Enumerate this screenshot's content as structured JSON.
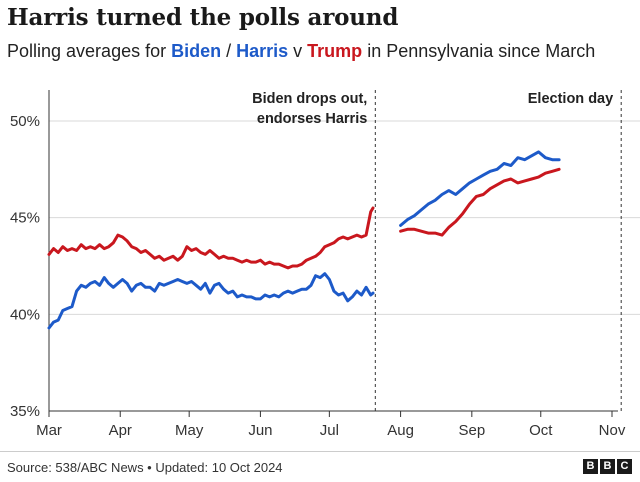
{
  "header": {
    "title": "Harris turned the polls around",
    "subtitle_prefix": "Polling averages for ",
    "subtitle_biden": "Biden",
    "subtitle_sep": " / ",
    "subtitle_harris": "Harris",
    "subtitle_v": " v ",
    "subtitle_trump": "Trump",
    "subtitle_suffix": " in Pennsylvania since March"
  },
  "footer": {
    "source": "Source: 538/ABC News • Updated: 10 Oct 2024",
    "logo_letters": [
      "B",
      "B",
      "C"
    ]
  },
  "colors": {
    "dem": "#1d5ac9",
    "rep": "#c9171e",
    "grid": "#d9d9d9",
    "axis": "#333333"
  },
  "chart_data": {
    "type": "line",
    "title": "Harris turned the polls around",
    "xlabel": "",
    "ylabel": "",
    "x_start": "2024-03-01",
    "x_end": "2024-11-05",
    "ylim": [
      35,
      52
    ],
    "yticks": [
      35,
      40,
      45,
      50
    ],
    "ytick_labels": [
      "35%",
      "40%",
      "45%",
      "50%"
    ],
    "xtick_labels": [
      "Mar",
      "Apr",
      "May",
      "Jun",
      "Jul",
      "Aug",
      "Sep",
      "Oct",
      "Nov"
    ],
    "xtick_days": [
      0,
      31,
      61,
      92,
      122,
      153,
      184,
      214,
      245
    ],
    "annotations": [
      {
        "day": 142,
        "lines": [
          "Biden drops out,",
          "endorses Harris"
        ]
      },
      {
        "day": 249,
        "lines": [
          "Election day"
        ]
      }
    ],
    "series": [
      {
        "name": "Biden",
        "party": "dem",
        "days": [
          0,
          2,
          4,
          6,
          8,
          10,
          12,
          14,
          16,
          18,
          20,
          22,
          24,
          26,
          28,
          30,
          32,
          34,
          36,
          38,
          40,
          42,
          44,
          46,
          48,
          50,
          52,
          54,
          56,
          58,
          60,
          62,
          64,
          66,
          68,
          70,
          72,
          74,
          76,
          78,
          80,
          82,
          84,
          86,
          88,
          90,
          92,
          94,
          96,
          98,
          100,
          102,
          104,
          106,
          108,
          110,
          112,
          114,
          116,
          118,
          120,
          122,
          124,
          126,
          128,
          130,
          132,
          134,
          136,
          138,
          140,
          141
        ],
        "values": [
          39.3,
          39.6,
          39.7,
          40.2,
          40.3,
          40.4,
          41.2,
          41.5,
          41.4,
          41.6,
          41.7,
          41.5,
          41.9,
          41.6,
          41.4,
          41.6,
          41.8,
          41.6,
          41.2,
          41.5,
          41.6,
          41.4,
          41.4,
          41.2,
          41.6,
          41.5,
          41.6,
          41.7,
          41.8,
          41.7,
          41.6,
          41.7,
          41.5,
          41.3,
          41.6,
          41.1,
          41.5,
          41.6,
          41.3,
          41.1,
          41.2,
          40.9,
          41.0,
          40.9,
          40.9,
          40.8,
          40.8,
          41.0,
          40.9,
          41.0,
          40.9,
          41.1,
          41.2,
          41.1,
          41.2,
          41.3,
          41.3,
          41.5,
          42.0,
          41.9,
          42.1,
          41.8,
          41.2,
          41.0,
          41.1,
          40.7,
          40.9,
          41.2,
          41.0,
          41.4,
          41.0,
          41.1
        ]
      },
      {
        "name": "Trump",
        "party": "rep",
        "days": [
          0,
          2,
          4,
          6,
          8,
          10,
          12,
          14,
          16,
          18,
          20,
          22,
          24,
          26,
          28,
          30,
          32,
          34,
          36,
          38,
          40,
          42,
          44,
          46,
          48,
          50,
          52,
          54,
          56,
          58,
          60,
          62,
          64,
          66,
          68,
          70,
          72,
          74,
          76,
          78,
          80,
          82,
          84,
          86,
          88,
          90,
          92,
          94,
          96,
          98,
          100,
          102,
          104,
          106,
          108,
          110,
          112,
          114,
          116,
          118,
          120,
          122,
          124,
          126,
          128,
          130,
          132,
          134,
          136,
          138,
          140,
          141
        ],
        "values": [
          43.1,
          43.4,
          43.2,
          43.5,
          43.3,
          43.4,
          43.3,
          43.6,
          43.4,
          43.5,
          43.4,
          43.6,
          43.4,
          43.5,
          43.7,
          44.1,
          44.0,
          43.8,
          43.5,
          43.4,
          43.2,
          43.3,
          43.1,
          42.9,
          43.0,
          42.8,
          42.9,
          43.0,
          42.8,
          43.0,
          43.5,
          43.3,
          43.4,
          43.2,
          43.1,
          43.3,
          43.1,
          42.9,
          43.0,
          42.9,
          42.9,
          42.8,
          42.7,
          42.8,
          42.7,
          42.7,
          42.8,
          42.6,
          42.7,
          42.6,
          42.6,
          42.5,
          42.4,
          42.5,
          42.5,
          42.6,
          42.8,
          42.9,
          43.0,
          43.2,
          43.5,
          43.6,
          43.7,
          43.9,
          44.0,
          43.9,
          44.0,
          44.1,
          44.0,
          44.1,
          45.3,
          45.5
        ]
      },
      {
        "name": "Harris",
        "party": "dem",
        "days": [
          153,
          156,
          159,
          162,
          165,
          168,
          171,
          174,
          177,
          180,
          183,
          186,
          189,
          192,
          195,
          198,
          201,
          204,
          207,
          210,
          213,
          216,
          219,
          222
        ],
        "values": [
          44.6,
          44.9,
          45.1,
          45.4,
          45.7,
          45.9,
          46.2,
          46.4,
          46.2,
          46.5,
          46.8,
          47.0,
          47.2,
          47.4,
          47.5,
          47.8,
          47.7,
          48.1,
          48.0,
          48.2,
          48.4,
          48.1,
          48.0,
          48.0
        ]
      },
      {
        "name": "Trump",
        "party": "rep",
        "days": [
          153,
          156,
          159,
          162,
          165,
          168,
          171,
          174,
          177,
          180,
          183,
          186,
          189,
          192,
          195,
          198,
          201,
          204,
          207,
          210,
          213,
          216,
          219,
          222
        ],
        "values": [
          44.3,
          44.4,
          44.4,
          44.3,
          44.2,
          44.2,
          44.1,
          44.5,
          44.8,
          45.2,
          45.7,
          46.1,
          46.2,
          46.5,
          46.7,
          46.9,
          47.0,
          46.8,
          46.9,
          47.0,
          47.1,
          47.3,
          47.4,
          47.5
        ]
      }
    ]
  }
}
